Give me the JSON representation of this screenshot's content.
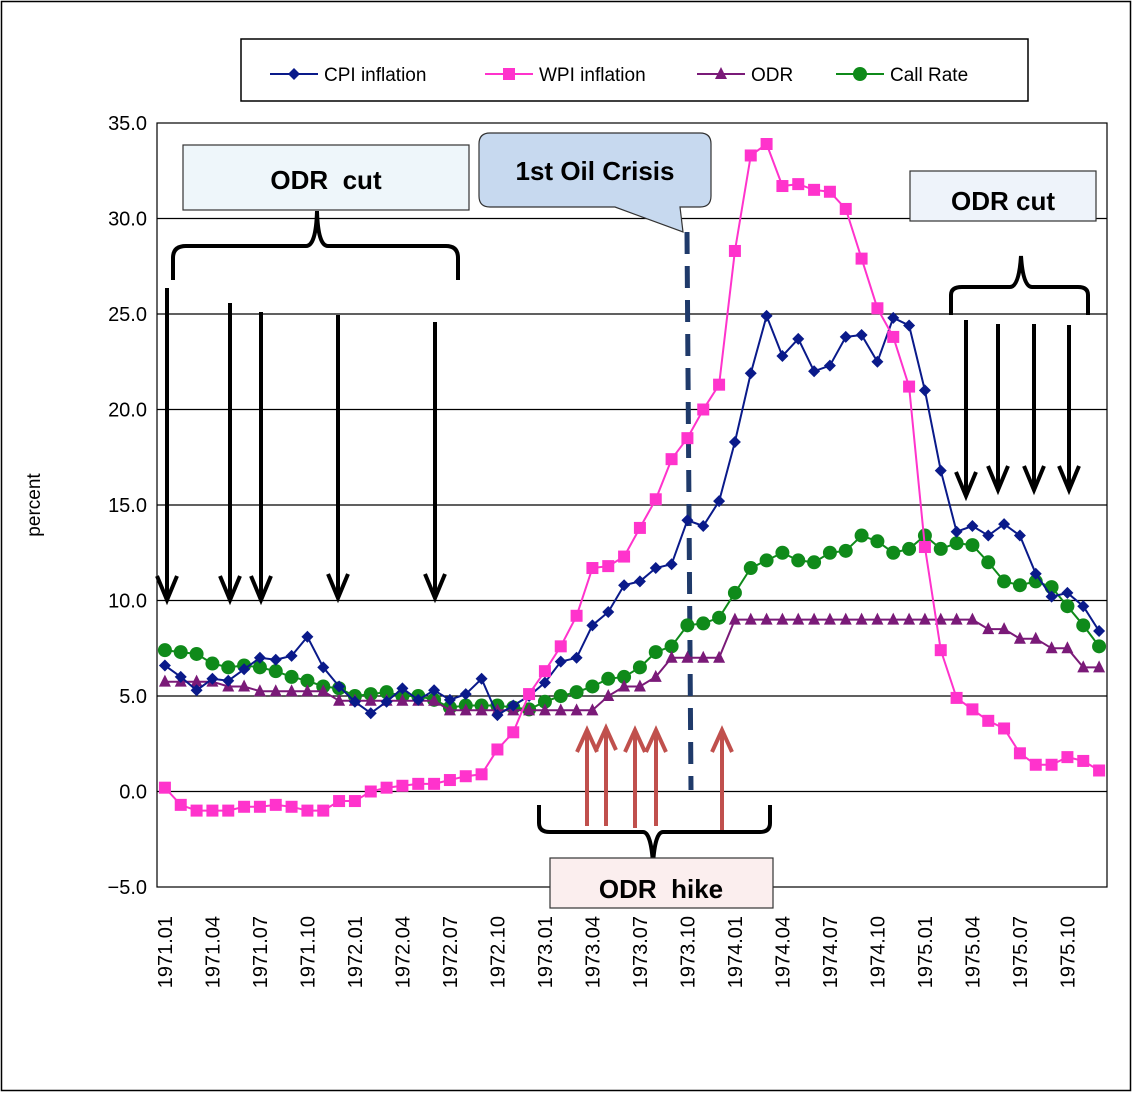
{
  "chart_data": {
    "type": "line",
    "title": "",
    "xlabel": "",
    "ylabel": "percent",
    "ylim": [
      -5,
      35
    ],
    "yticks": [
      "35.0",
      "30.0",
      "25.0",
      "20.0",
      "15.0",
      "10.0",
      "5.0",
      "0.0",
      "−5.0"
    ],
    "grid": "horizontal",
    "legend_position": "top",
    "x_tick_labels": [
      "1971.01",
      "1971.04",
      "1971.07",
      "1971.10",
      "1972.01",
      "1972.04",
      "1972.07",
      "1972.10",
      "1973.01",
      "1973.04",
      "1973.07",
      "1973.10",
      "1974.01",
      "1974.04",
      "1974.07",
      "1974.10",
      "1975.01",
      "1975.04",
      "1975.07",
      "1975.10"
    ],
    "x_start": "1971.01",
    "x_end": "1975.12",
    "series": [
      {
        "name": "CPI inflation",
        "color": "#0a1a8a",
        "marker": "diamond",
        "values": [
          6.6,
          6.0,
          5.3,
          5.9,
          5.8,
          6.4,
          7.0,
          6.9,
          7.1,
          8.1,
          6.5,
          5.5,
          4.7,
          4.1,
          4.7,
          5.4,
          4.8,
          5.3,
          4.8,
          5.1,
          5.9,
          4.0,
          4.5,
          5.0,
          5.7,
          6.8,
          7.0,
          8.7,
          9.4,
          10.8,
          11.0,
          11.7,
          11.9,
          14.2,
          13.9,
          15.2,
          18.3,
          21.9,
          24.9,
          22.8,
          23.7,
          22.0,
          22.3,
          23.8,
          23.9,
          22.5,
          24.8,
          24.4,
          21.0,
          16.8,
          13.6,
          13.9,
          13.4,
          14.0,
          13.4,
          11.4,
          10.2,
          10.4,
          9.7,
          8.4
        ]
      },
      {
        "name": "WPI inflation",
        "color": "#ff33cc",
        "marker": "square",
        "values": [
          0.2,
          -0.7,
          -1.0,
          -1.0,
          -1.0,
          -0.8,
          -0.8,
          -0.7,
          -0.8,
          -1.0,
          -1.0,
          -0.5,
          -0.5,
          0.0,
          0.2,
          0.3,
          0.4,
          0.4,
          0.6,
          0.8,
          0.9,
          2.2,
          3.1,
          5.1,
          6.3,
          7.6,
          9.2,
          11.7,
          11.8,
          12.3,
          13.8,
          15.3,
          17.4,
          18.5,
          20.0,
          21.3,
          28.3,
          33.3,
          33.9,
          31.7,
          31.8,
          31.5,
          31.4,
          30.5,
          27.9,
          25.3,
          23.8,
          21.2,
          12.8,
          7.4,
          4.9,
          4.3,
          3.7,
          3.3,
          2.0,
          1.4,
          1.4,
          1.8,
          1.6,
          1.1
        ]
      },
      {
        "name": "ODR",
        "color": "#7a1a78",
        "marker": "triangle",
        "values": [
          5.75,
          5.75,
          5.75,
          5.75,
          5.5,
          5.5,
          5.25,
          5.25,
          5.25,
          5.25,
          5.25,
          4.75,
          4.75,
          4.75,
          4.75,
          4.75,
          4.75,
          4.75,
          4.25,
          4.25,
          4.25,
          4.25,
          4.25,
          4.25,
          4.25,
          4.25,
          4.25,
          4.25,
          5.0,
          5.5,
          5.5,
          6.0,
          7.0,
          7.0,
          7.0,
          7.0,
          9.0,
          9.0,
          9.0,
          9.0,
          9.0,
          9.0,
          9.0,
          9.0,
          9.0,
          9.0,
          9.0,
          9.0,
          9.0,
          9.0,
          9.0,
          9.0,
          8.5,
          8.5,
          8.0,
          8.0,
          7.5,
          7.5,
          6.5,
          6.5
        ]
      },
      {
        "name": "Call Rate",
        "color": "#0f8a1a",
        "marker": "circle",
        "values": [
          7.4,
          7.3,
          7.2,
          6.7,
          6.5,
          6.6,
          6.5,
          6.3,
          6.0,
          5.8,
          5.5,
          5.4,
          5.0,
          5.1,
          5.2,
          5.0,
          5.0,
          4.8,
          4.4,
          4.5,
          4.5,
          4.5,
          4.4,
          4.3,
          4.7,
          5.0,
          5.2,
          5.5,
          5.9,
          6.0,
          6.5,
          7.3,
          7.6,
          8.7,
          8.8,
          9.1,
          10.4,
          11.7,
          12.1,
          12.5,
          12.1,
          12.0,
          12.5,
          12.6,
          13.4,
          13.1,
          12.5,
          12.7,
          13.4,
          12.7,
          13.0,
          12.9,
          12.0,
          11.0,
          10.8,
          11.0,
          10.7,
          9.7,
          8.7,
          7.6
        ]
      }
    ],
    "annotations": {
      "odr_cut_left": "ODR  cut",
      "oil_crisis": "1st Oil Crisis",
      "odr_cut_right": "ODR cut",
      "odr_hike": "ODR  hike"
    }
  }
}
